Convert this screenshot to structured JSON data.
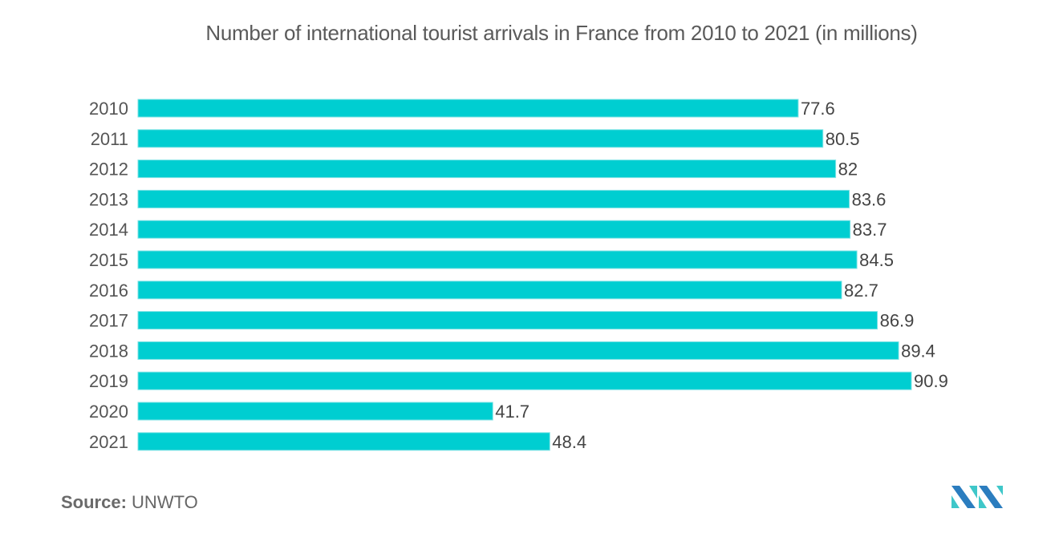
{
  "chart_data": {
    "type": "bar",
    "orientation": "horizontal",
    "title": "Number of international tourist arrivals in France from 2010 to 2021 (in millions)",
    "xlabel": "",
    "ylabel": "",
    "categories": [
      "2010",
      "2011",
      "2012",
      "2013",
      "2014",
      "2015",
      "2016",
      "2017",
      "2018",
      "2019",
      "2020",
      "2021"
    ],
    "values": [
      77.6,
      80.5,
      82,
      83.6,
      83.7,
      84.5,
      82.7,
      86.9,
      89.4,
      90.9,
      41.7,
      48.4
    ],
    "value_labels": [
      "77.6",
      "80.5",
      "82",
      "83.6",
      "83.7",
      "84.5",
      "82.7",
      "86.9",
      "89.4",
      "90.9",
      "41.7",
      "48.4"
    ],
    "xlim": [
      0,
      90.9
    ],
    "grid": false,
    "legend": "none",
    "bar_color": "#00ced1"
  },
  "source": {
    "label": "Source:",
    "value": "UNWTO"
  },
  "logo": {
    "name": "mordor-intelligence-logo",
    "colors": [
      "#2b7dbf",
      "#3fc7c9"
    ]
  }
}
